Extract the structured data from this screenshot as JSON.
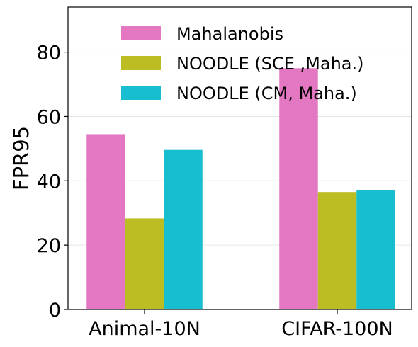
{
  "chart_data": {
    "type": "bar",
    "title": "",
    "xlabel": "",
    "ylabel": "FPR95",
    "categories": [
      "Animal-10N",
      "CIFAR-100N"
    ],
    "series": [
      {
        "name": "Mahalanobis",
        "values": [
          54.5,
          75.0
        ],
        "color": "#e377c2"
      },
      {
        "name": "NOODLE (SCE ,Maha.)",
        "values": [
          28.3,
          36.5
        ],
        "color": "#bcbd22"
      },
      {
        "name": "NOODLE (CM, Maha.)",
        "values": [
          49.6,
          37.0
        ],
        "color": "#17becf"
      }
    ],
    "ylim": [
      0,
      94
    ],
    "yticks": [
      0,
      20,
      40,
      60,
      80
    ],
    "grid": "horizontal",
    "legend": "top"
  }
}
